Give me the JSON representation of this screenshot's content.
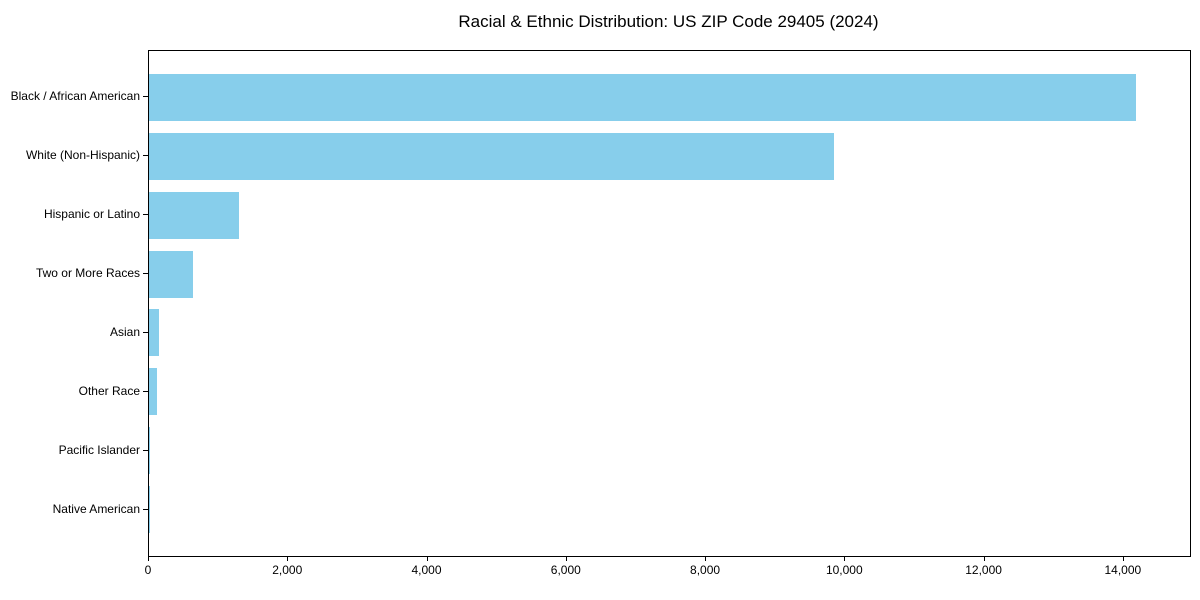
{
  "chart_data": {
    "type": "bar",
    "orientation": "horizontal",
    "title": "Racial & Ethnic Distribution: US ZIP Code 29405 (2024)",
    "categories": [
      "Black / African American",
      "White (Non-Hispanic)",
      "Hispanic or Latino",
      "Two or More Races",
      "Asian",
      "Other Race",
      "Pacific Islander",
      "Native American"
    ],
    "values": [
      14180,
      9840,
      1290,
      630,
      150,
      120,
      20,
      5
    ],
    "bar_color": "#87CEEB",
    "text_color": "#000000",
    "spine_color": "#000000",
    "xlim": [
      0,
      14950
    ],
    "xticks": [
      0,
      2000,
      4000,
      6000,
      8000,
      10000,
      12000,
      14000
    ],
    "xtick_labels": [
      "0",
      "2,000",
      "4,000",
      "6,000",
      "8,000",
      "10,000",
      "12,000",
      "14,000"
    ],
    "xlabel": "",
    "ylabel": "",
    "grid": false,
    "legend": false
  }
}
